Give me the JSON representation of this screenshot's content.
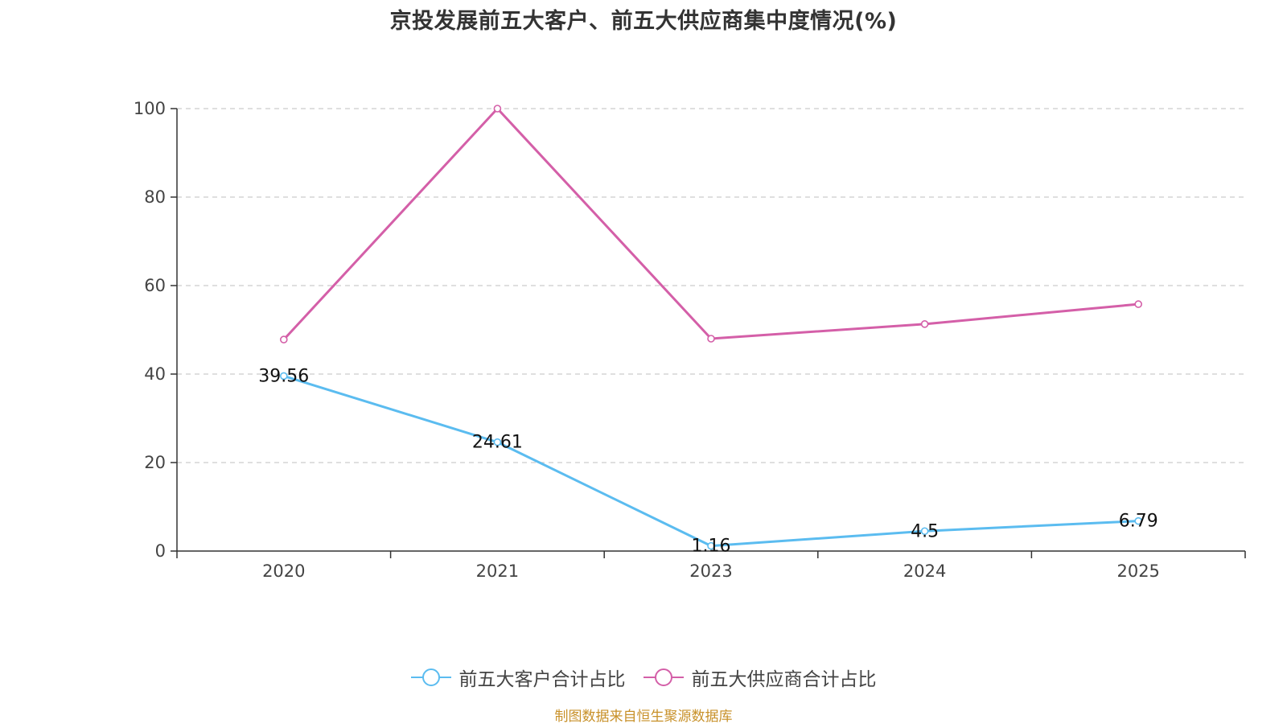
{
  "chart_data": {
    "type": "line",
    "title": "京投发展前五大客户、前五大供应商集中度情况(%)",
    "categories": [
      "2020",
      "2021",
      "2023",
      "2024",
      "2025"
    ],
    "ylim": [
      0,
      100
    ],
    "yticks": [
      0,
      20,
      40,
      60,
      80,
      100
    ],
    "grid": true,
    "legend_position": "bottom-center",
    "series": [
      {
        "name": "前五大客户合计占比",
        "color": "#5bbcf0",
        "values": [
          39.56,
          24.61,
          1.16,
          4.5,
          6.79
        ],
        "labels": [
          "39.56",
          "24.61",
          "1.16",
          "4.5",
          "6.79"
        ],
        "show_labels": true
      },
      {
        "name": "前五大供应商合计占比",
        "color": "#d45fa8",
        "values": [
          47.8,
          100,
          48.0,
          51.3,
          55.8
        ],
        "show_labels": false
      }
    ],
    "source": "制图数据来自恒生聚源数据库"
  }
}
